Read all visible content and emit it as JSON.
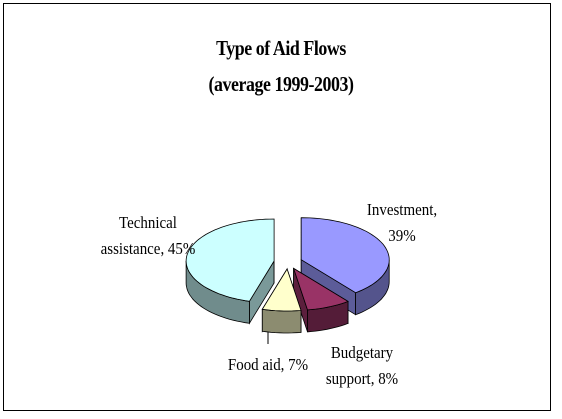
{
  "chart_data": {
    "type": "pie3d",
    "title": "Type of Aid Flows",
    "subtitle": "(average 1999-2003)",
    "values": [
      39,
      8,
      7,
      45
    ],
    "value_labels": [
      "Investment, 39%",
      "Budgetary support, 8%",
      "Food aid, 7%",
      "Technical assistance, 45%"
    ],
    "colors": [
      "#9999ff",
      "#993366",
      "#ffffcc",
      "#ccffff"
    ]
  }
}
